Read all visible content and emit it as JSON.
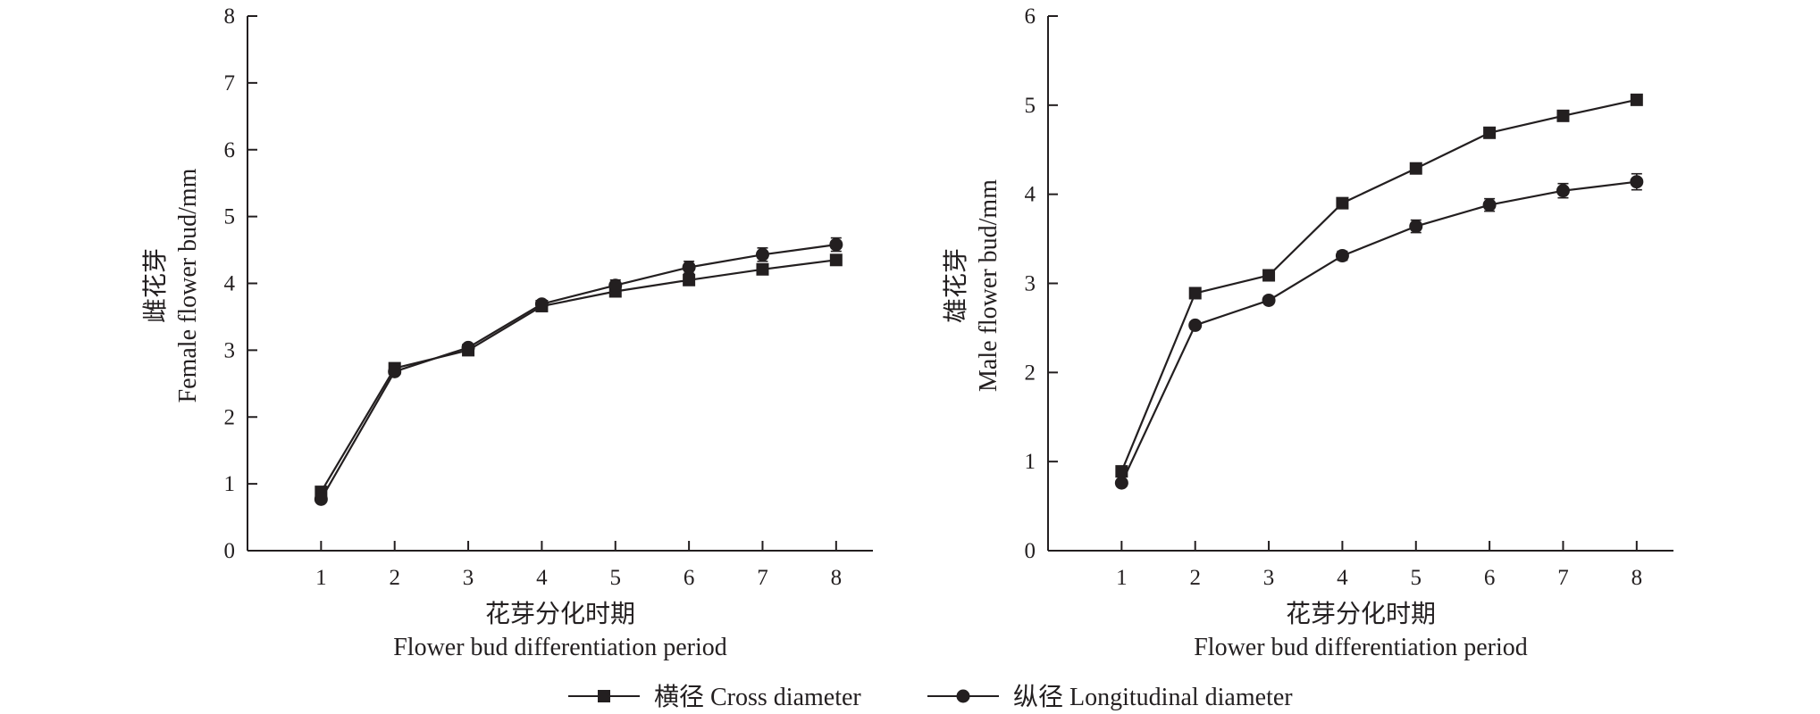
{
  "colors": {
    "ink": "#231f20",
    "background": "#ffffff"
  },
  "legend": {
    "items": [
      {
        "label": "横径 Cross diameter",
        "marker": "square-marker-icon"
      },
      {
        "label": "纵径 Longitudinal diameter",
        "marker": "circle-marker-icon"
      }
    ],
    "placement": "bottom-center"
  },
  "chart_data": [
    {
      "type": "line",
      "panel": "left",
      "ylabel_cn": "雌花芽",
      "ylabel_en": "Female flower bud/mm",
      "xlabel_cn": "花芽分化时期",
      "xlabel_en": "Flower bud differentiation period",
      "x": [
        1,
        2,
        3,
        4,
        5,
        6,
        7,
        8
      ],
      "xlim": [
        0,
        8.5
      ],
      "ylim": [
        0,
        8
      ],
      "yticks": [
        0,
        1,
        2,
        3,
        4,
        5,
        6,
        7,
        8
      ],
      "grid": false,
      "series": [
        {
          "name": "横径 Cross diameter",
          "marker": "square",
          "values": [
            0.88,
            2.73,
            3.0,
            3.66,
            3.88,
            4.05,
            4.21,
            4.35
          ],
          "errors": [
            0.03,
            0.04,
            0.04,
            0.05,
            0.05,
            0.05,
            0.06,
            0.06
          ]
        },
        {
          "name": "纵径 Longitudinal diameter",
          "marker": "circle",
          "values": [
            0.77,
            2.68,
            3.04,
            3.69,
            3.97,
            4.24,
            4.43,
            4.58
          ],
          "errors": [
            0.03,
            0.05,
            0.05,
            0.05,
            0.08,
            0.09,
            0.1,
            0.1
          ]
        }
      ]
    },
    {
      "type": "line",
      "panel": "right",
      "ylabel_cn": "雄花芽",
      "ylabel_en": "Male flower bud/mm",
      "xlabel_cn": "花芽分化时期",
      "xlabel_en": "Flower bud differentiation period",
      "x": [
        1,
        2,
        3,
        4,
        5,
        6,
        7,
        8
      ],
      "xlim": [
        0,
        8.5
      ],
      "ylim": [
        0,
        6
      ],
      "yticks": [
        0,
        1,
        2,
        3,
        4,
        5,
        6
      ],
      "grid": false,
      "series": [
        {
          "name": "横径 Cross diameter",
          "marker": "square",
          "values": [
            0.89,
            2.89,
            3.09,
            3.9,
            4.29,
            4.69,
            4.88,
            5.06
          ],
          "errors": [
            0.03,
            0.04,
            0.04,
            0.04,
            0.04,
            0.04,
            0.05,
            0.05
          ]
        },
        {
          "name": "纵径 Longitudinal diameter",
          "marker": "circle",
          "values": [
            0.76,
            2.53,
            2.81,
            3.31,
            3.64,
            3.88,
            4.04,
            4.14
          ],
          "errors": [
            0.03,
            0.04,
            0.04,
            0.05,
            0.07,
            0.07,
            0.08,
            0.09
          ]
        }
      ]
    }
  ]
}
